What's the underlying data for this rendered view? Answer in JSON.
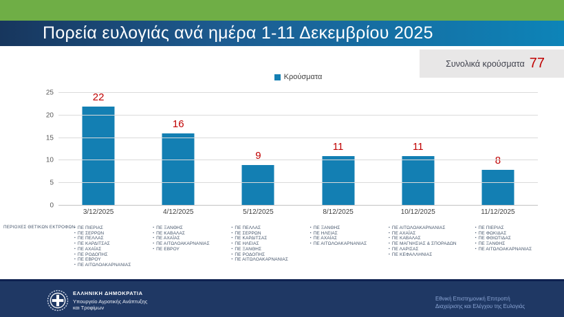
{
  "header": {
    "title": "Πορεία ευλογιάς ανά ημέρα 1-11 Δεκεμβρίου 2025"
  },
  "total_box": {
    "label": "Συνολικά κρούσματα",
    "value": "77"
  },
  "chart_data": {
    "type": "bar",
    "title": "",
    "legend": [
      "Κρούσματα"
    ],
    "legend_position": "top-center",
    "categories": [
      "3/12/2025",
      "4/12/2025",
      "5/12/2025",
      "8/12/2025",
      "10/12/2025",
      "11/12/2025"
    ],
    "values": [
      22,
      16,
      9,
      11,
      11,
      8
    ],
    "ylim": [
      0,
      25
    ],
    "yticks": [
      0,
      5,
      10,
      15,
      20,
      25
    ],
    "grid": true,
    "bar_color": "#137fb3",
    "value_label_color": "#c00000"
  },
  "regions": {
    "label": "ΠΕΡΙΟΧΕΣ ΘΕΤΙΚΩΝ ΕΚΤΡΟΦΩΝ",
    "columns": [
      {
        "date": "3/12/2025",
        "items": [
          "ΠΕ ΠΙΕΡΙΑΣ",
          "ΠΕ ΣΕΡΡΩΝ",
          "ΠΕ ΠΕΛΛΑΣ",
          "ΠΕ ΚΑΡΔΙΤΣΑΣ",
          "ΠΕ ΑΧΑΪΑΣ",
          "ΠΕ ΡΟΔΟΠΗΣ",
          "ΠΕ ΕΒΡΟΥ",
          "ΠΕ ΑΙΤΩΛΟΑΚΑΡΝΑΝΙΑΣ"
        ]
      },
      {
        "date": "4/12/2025",
        "items": [
          "ΠΕ ΞΑΝΘΗΣ",
          "ΠΕ ΚΑΒΑΛΑΣ",
          "ΠΕ ΑΧΑΪΑΣ",
          "ΠΕ ΑΙΤΩΛΟΑΚΑΡΝΑΝΙΑΣ",
          "ΠΕ ΕΒΡΟΥ"
        ]
      },
      {
        "date": "5/12/2025",
        "items": [
          "ΠΕ ΠΕΛΛΑΣ",
          "ΠΕ ΣΕΡΡΩΝ",
          "ΠΕ ΚΑΡΔΙΤΣΑΣ",
          "ΠΕ ΗΛΕΙΑΣ",
          "ΠΕ ΞΑΝΘΗΣ",
          "ΠΕ ΡΟΔΟΠΗΣ",
          "ΠΕ ΑΙΤΩΛΟΑΚΑΡΝΑΝΙΑΣ"
        ]
      },
      {
        "date": "8/12/2025",
        "items": [
          "ΠΕ ΞΑΝΘΗΣ",
          "ΠΕ ΗΛΕΙΑΣ",
          "ΠΕ ΑΧΑΪΑΣ",
          "ΠΕ ΑΙΤΩΛΟΑΚΑΡΝΑΝΙΑΣ"
        ]
      },
      {
        "date": "10/12/2025",
        "items": [
          "ΠΕ ΑΙΤΩΛΟΑΚΑΡΝΑΝΙΑΣ",
          "ΠΕ ΑΧΑΪΑΣ",
          "ΠΕ ΚΑΒΑΛΑΣ",
          "ΠΕ ΜΑΓΝΗΣΙΑΣ & ΣΠΟΡΑΔΩΝ",
          "ΠΕ ΛΑΡΙΣΑΣ",
          "ΠΕ ΚΕΦΑΛΛΗΝΙΑΣ"
        ]
      },
      {
        "date": "11/12/2025",
        "items": [
          "ΠΕ ΠΙΕΡΙΑΣ",
          "ΠΕ ΦΩΚΙΔΑΣ",
          "ΠΕ ΦΘΙΩΤΙΔΑΣ",
          "ΠΕ ΞΑΝΘΗΣ",
          "ΠΕ ΑΙΤΩΛΟΑΚΑΡΝΑΝΙΑΣ"
        ]
      }
    ]
  },
  "footer": {
    "org_title": "ΕΛΛΗΝΙΚΗ ΔΗΜΟΚΡΑΤΙΑ",
    "org_line2": "Υπουργείο Αγροτικής Ανάπτυξης",
    "org_line3": "και Τροφίμων",
    "committee_line1": "Εθνική Επιστημονική Επιτροπή",
    "committee_line2": "Διαχείρισης και Ελέγχου της Ευλογιάς"
  },
  "colors": {
    "top_band_green": "#6fae46",
    "title_bar_gradient_left": "#17365d",
    "title_bar_gradient_right": "#0d84b8",
    "bar_blue": "#137fb3",
    "value_red": "#c00000",
    "total_box_gray": "#e8e7e7",
    "footer_navy": "#1f3864"
  }
}
